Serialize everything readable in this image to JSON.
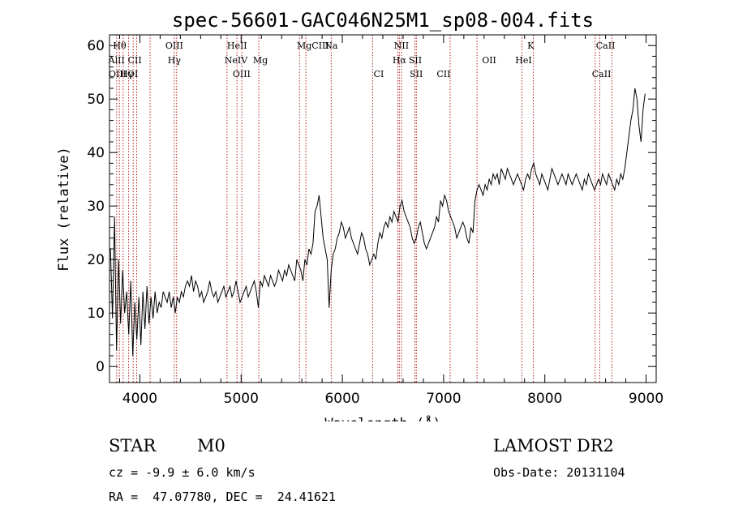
{
  "chart_data": {
    "type": "line",
    "title": "spec-56601-GAC046N25M1_sp08-004.fits",
    "xlabel": "Wavelength (Å)",
    "ylabel": "Flux (relative)",
    "xlim": [
      3700,
      9100
    ],
    "ylim": [
      -3,
      62
    ],
    "xticks": [
      4000,
      5000,
      6000,
      7000,
      8000,
      9000
    ],
    "yticks": [
      0,
      10,
      20,
      30,
      40,
      50,
      60
    ],
    "grid": false,
    "line_color": "#000000",
    "marker_color": "#b22222",
    "series": [
      {
        "x": [
          3710,
          3730,
          3750,
          3770,
          3790,
          3810,
          3830,
          3850,
          3870,
          3890,
          3910,
          3930,
          3950,
          3970,
          3990,
          4010,
          4030,
          4050,
          4070,
          4090,
          4110,
          4130,
          4150,
          4170,
          4190,
          4210,
          4230,
          4250,
          4270,
          4290,
          4310,
          4330,
          4350,
          4370,
          4390,
          4410,
          4430,
          4450,
          4470,
          4490,
          4510,
          4530,
          4550,
          4570,
          4590,
          4610,
          4630,
          4650,
          4670,
          4690,
          4710,
          4730,
          4750,
          4770,
          4790,
          4810,
          4830,
          4850,
          4870,
          4890,
          4910,
          4930,
          4950,
          4970,
          4990,
          5010,
          5030,
          5050,
          5070,
          5090,
          5110,
          5130,
          5150,
          5170,
          5190,
          5210,
          5230,
          5250,
          5270,
          5290,
          5310,
          5330,
          5350,
          5370,
          5390,
          5410,
          5430,
          5450,
          5470,
          5490,
          5510,
          5530,
          5550,
          5570,
          5590,
          5610,
          5630,
          5650,
          5670,
          5690,
          5710,
          5730,
          5750,
          5770,
          5790,
          5810,
          5830,
          5850,
          5870,
          5890,
          5910,
          5930,
          5950,
          5970,
          5990,
          6010,
          6030,
          6050,
          6070,
          6090,
          6110,
          6130,
          6150,
          6170,
          6190,
          6210,
          6230,
          6250,
          6270,
          6290,
          6310,
          6330,
          6350,
          6370,
          6390,
          6410,
          6430,
          6450,
          6470,
          6490,
          6510,
          6530,
          6550,
          6570,
          6590,
          6610,
          6630,
          6650,
          6670,
          6690,
          6710,
          6730,
          6750,
          6770,
          6790,
          6810,
          6830,
          6850,
          6870,
          6890,
          6910,
          6930,
          6950,
          6970,
          6990,
          7010,
          7030,
          7050,
          7070,
          7090,
          7110,
          7130,
          7150,
          7170,
          7190,
          7210,
          7230,
          7250,
          7270,
          7290,
          7310,
          7330,
          7350,
          7370,
          7390,
          7410,
          7430,
          7450,
          7470,
          7490,
          7510,
          7530,
          7550,
          7570,
          7590,
          7610,
          7630,
          7650,
          7670,
          7690,
          7710,
          7730,
          7750,
          7770,
          7790,
          7810,
          7830,
          7850,
          7870,
          7890,
          7910,
          7930,
          7950,
          7970,
          7990,
          8010,
          8030,
          8050,
          8070,
          8090,
          8110,
          8130,
          8150,
          8170,
          8190,
          8210,
          8230,
          8250,
          8270,
          8290,
          8310,
          8330,
          8350,
          8370,
          8390,
          8410,
          8430,
          8450,
          8470,
          8490,
          8510,
          8530,
          8550,
          8570,
          8590,
          8610,
          8630,
          8650,
          8670,
          8690,
          8710,
          8730,
          8750,
          8770,
          8790,
          8810,
          8830,
          8850,
          8870,
          8890,
          8910,
          8930,
          8950,
          8970,
          8990
        ],
        "y": [
          22,
          9,
          28,
          3,
          20,
          8,
          18,
          10,
          14,
          6,
          16,
          2,
          12,
          5,
          13,
          4,
          14,
          7,
          15,
          8,
          13,
          9,
          14,
          10,
          12,
          11,
          14,
          13,
          12,
          14,
          11,
          13,
          10,
          13,
          12,
          14,
          13,
          15,
          16,
          15,
          17,
          14,
          16,
          15,
          13,
          14,
          12,
          13,
          14,
          16,
          14,
          13,
          14,
          12,
          13,
          14,
          15,
          13,
          14,
          15,
          13,
          14,
          16,
          14,
          12,
          13,
          14,
          15,
          13,
          14,
          15,
          16,
          14,
          11,
          16,
          15,
          17,
          16,
          15,
          17,
          16,
          15,
          16,
          18,
          17,
          16,
          18,
          17,
          19,
          18,
          17,
          16,
          20,
          19,
          18,
          16,
          20,
          19,
          22,
          21,
          23,
          29,
          30,
          32,
          28,
          24,
          22,
          20,
          11,
          18,
          21,
          22,
          24,
          25,
          27,
          26,
          24,
          25,
          26,
          24,
          23,
          22,
          21,
          23,
          25,
          24,
          22,
          21,
          19,
          20,
          21,
          20,
          23,
          25,
          24,
          26,
          27,
          26,
          28,
          27,
          29,
          28,
          27,
          30,
          31,
          29,
          28,
          27,
          26,
          24,
          23,
          24,
          26,
          27,
          25,
          23,
          22,
          23,
          24,
          25,
          26,
          28,
          27,
          31,
          30,
          32,
          31,
          29,
          28,
          27,
          26,
          24,
          25,
          26,
          27,
          26,
          24,
          23,
          26,
          25,
          31,
          33,
          34,
          33,
          32,
          34,
          33,
          35,
          34,
          36,
          35,
          36,
          34,
          37,
          36,
          35,
          37,
          36,
          35,
          34,
          35,
          36,
          35,
          34,
          33,
          35,
          36,
          35,
          37,
          38,
          36,
          35,
          34,
          36,
          35,
          34,
          33,
          35,
          37,
          36,
          35,
          34,
          35,
          36,
          35,
          34,
          36,
          35,
          34,
          35,
          36,
          35,
          34,
          33,
          35,
          34,
          36,
          35,
          34,
          33,
          34,
          35,
          34,
          36,
          35,
          34,
          36,
          35,
          34,
          33,
          35,
          34,
          36,
          35,
          37,
          40,
          43,
          46,
          48,
          52,
          50,
          45,
          42,
          48,
          51
        ]
      }
    ],
    "line_markers": {
      "row1": [
        {
          "w": 3800,
          "label": "Hθ"
        },
        {
          "w": 4340,
          "label": "OIII"
        },
        {
          "w": 4960,
          "label": "HeII"
        },
        {
          "w": 5710,
          "label": "MgCIII"
        },
        {
          "w": 5890,
          "label": "Na"
        },
        {
          "w": 6584,
          "label": "NII"
        },
        {
          "w": 7860,
          "label": "K"
        },
        {
          "w": 8600,
          "label": "CaII"
        }
      ],
      "row2": [
        {
          "w": 3770,
          "label": "AlII"
        },
        {
          "w": 3950,
          "label": "CII"
        },
        {
          "w": 4340,
          "label": "Hγ"
        },
        {
          "w": 4950,
          "label": "NeIV"
        },
        {
          "w": 5190,
          "label": "Mg"
        },
        {
          "w": 6563,
          "label": "Hα"
        },
        {
          "w": 6720,
          "label": "SII"
        },
        {
          "w": 7450,
          "label": "OII"
        },
        {
          "w": 7790,
          "label": "HeI"
        }
      ],
      "row3": [
        {
          "w": 3780,
          "label": "OIII"
        },
        {
          "w": 3870,
          "label": "Hγ"
        },
        {
          "w": 3930,
          "label": "OI"
        },
        {
          "w": 5005,
          "label": "OIII"
        },
        {
          "w": 6360,
          "label": "CI"
        },
        {
          "w": 6730,
          "label": "SII"
        },
        {
          "w": 7000,
          "label": "CII"
        },
        {
          "w": 8560,
          "label": "CaII"
        }
      ],
      "lines": [
        3771,
        3798,
        3835,
        3889,
        3934,
        3968,
        4101,
        4340,
        4363,
        4861,
        4959,
        5007,
        5175,
        5577,
        5640,
        5890,
        6300,
        6548,
        6563,
        6584,
        6717,
        6731,
        7065,
        7330,
        7774,
        7886,
        8498,
        8542,
        8662
      ]
    }
  },
  "footer": {
    "class_label": "STAR",
    "subclass": "M0",
    "survey": "LAMOST DR2",
    "cz": "cz = -9.9 ± 6.0 km/s",
    "obs_date": "Obs-Date: 20131104",
    "coords": "RA =  47.07780, DEC =  24.41621"
  }
}
